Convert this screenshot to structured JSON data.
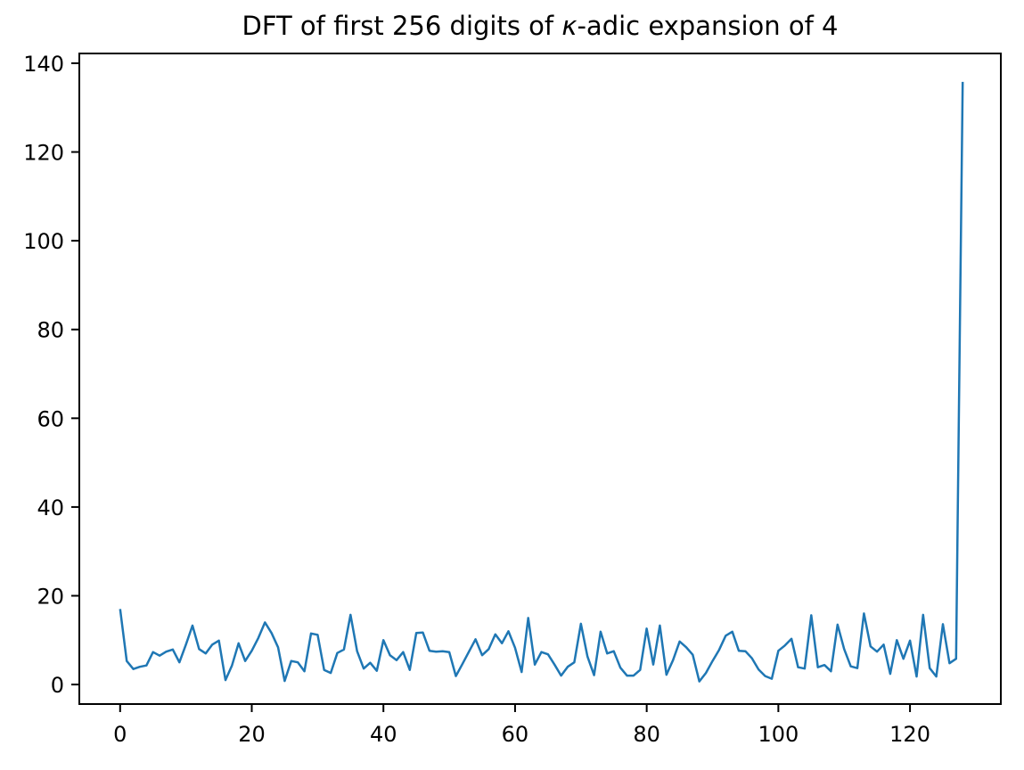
{
  "figure": {
    "title_prefix": "DFT of first 256 digits of ",
    "title_kappa": "κ",
    "title_suffix": "-adic expansion of 4"
  },
  "chart_data": {
    "type": "line",
    "title": "DFT of first 256 digits of κ-adic expansion of 4",
    "xlabel": "",
    "ylabel": "",
    "legend": null,
    "grid": false,
    "x_start": 0,
    "x_step": 1,
    "values": [
      17.0,
      5.3,
      3.5,
      4.0,
      4.3,
      7.3,
      6.5,
      7.4,
      7.9,
      5.0,
      9.0,
      13.3,
      8.0,
      7.0,
      9.0,
      9.9,
      1.0,
      4.3,
      9.3,
      5.3,
      7.6,
      10.5,
      14.0,
      11.6,
      8.4,
      0.8,
      5.3,
      5.0,
      3.0,
      11.5,
      11.2,
      3.3,
      2.6,
      7.1,
      7.9,
      15.7,
      7.5,
      3.6,
      4.9,
      3.1,
      10.0,
      6.6,
      5.5,
      7.3,
      3.3,
      11.6,
      11.7,
      7.6,
      7.4,
      7.5,
      7.3,
      1.9,
      4.6,
      7.4,
      10.2,
      6.6,
      8.0,
      11.3,
      9.3,
      12.0,
      8.3,
      2.8,
      15.0,
      4.5,
      7.3,
      6.8,
      4.5,
      2.0,
      4.0,
      5.0,
      13.7,
      6.3,
      2.1,
      11.9,
      7.0,
      7.5,
      3.8,
      2.0,
      2.0,
      3.3,
      12.6,
      4.5,
      13.3,
      2.2,
      5.5,
      9.7,
      8.4,
      6.7,
      0.7,
      2.6,
      5.3,
      7.8,
      11.0,
      11.9,
      7.6,
      7.5,
      5.9,
      3.4,
      1.9,
      1.3,
      7.6,
      8.8,
      10.3,
      3.9,
      3.6,
      15.6,
      3.9,
      4.4,
      3.0,
      13.5,
      8.0,
      4.1,
      3.7,
      16.0,
      8.6,
      7.4,
      9.0,
      2.4,
      10.0,
      5.8,
      9.9,
      1.8,
      15.7,
      3.7,
      1.8,
      13.6,
      4.8,
      5.8,
      135.8
    ],
    "xticks": [
      0,
      20,
      40,
      60,
      80,
      100,
      120
    ],
    "yticks": [
      0,
      20,
      40,
      60,
      80,
      100,
      120,
      140
    ],
    "xlim": [
      -6.2,
      133.8
    ],
    "ylim": [
      -4.4,
      142.2
    ],
    "style": {
      "line_color": "#1f77b4",
      "spine_color": "#000000",
      "text_color": "#000000",
      "background": "#ffffff"
    }
  }
}
